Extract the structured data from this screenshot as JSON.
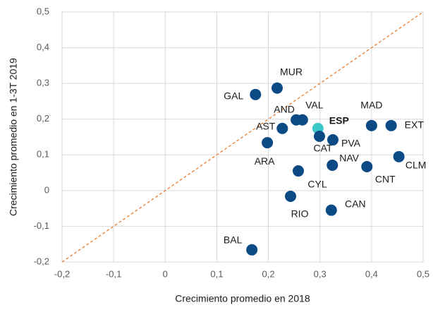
{
  "chart_data": {
    "type": "scatter",
    "x_label": "Crecimiento promedio  en 2018",
    "y_label": "Crecimiento promedio  en 1-3T 2019",
    "labels": [
      "MUR",
      "GAL",
      "AND",
      "VAL",
      "ESP",
      "AST",
      "CAT",
      "PVA",
      "MAD",
      "EXT",
      "ARA",
      "NAV",
      "CLM",
      "CNT",
      "CYL",
      "RIO",
      "CAN",
      "BAL"
    ],
    "x": [
      0.217,
      0.175,
      0.254,
      0.266,
      0.296,
      0.227,
      0.299,
      0.325,
      0.4,
      0.438,
      0.198,
      0.324,
      0.453,
      0.391,
      0.258,
      0.243,
      0.322,
      0.168
    ],
    "y": [
      0.287,
      0.269,
      0.198,
      0.198,
      0.174,
      0.174,
      0.152,
      0.142,
      0.182,
      0.182,
      0.134,
      0.071,
      0.095,
      0.067,
      0.055,
      -0.016,
      -0.055,
      -0.166
    ],
    "colors": [
      "#0b4a85",
      "#0b4a85",
      "#0b4a85",
      "#0b4a85",
      "#3ec9c9",
      "#0b4a85",
      "#0b4a85",
      "#0b4a85",
      "#0b4a85",
      "#0b4a85",
      "#0b4a85",
      "#0b4a85",
      "#0b4a85",
      "#0b4a85",
      "#0b4a85",
      "#0b4a85",
      "#0b4a85",
      "#0b4a85"
    ],
    "xlim": [
      -0.2,
      0.5
    ],
    "ylim": [
      -0.2,
      0.5
    ],
    "xticks": [
      {
        "value": -0.2,
        "label": "-0,2"
      },
      {
        "value": -0.1,
        "label": "-0,1"
      },
      0,
      {
        "value": 0.1,
        "label": "0,1"
      },
      {
        "value": 0.2,
        "label": "0,2"
      },
      {
        "value": 0.3,
        "label": "0,3"
      },
      {
        "value": 0.4,
        "label": "0,4"
      },
      {
        "value": 0.5,
        "label": "0,5"
      }
    ],
    "yticks": [
      {
        "value": -0.2,
        "label": "-0,2"
      },
      {
        "value": -0.1,
        "label": "-0,1"
      },
      0,
      {
        "value": 0.1,
        "label": "0,1"
      },
      {
        "value": 0.2,
        "label": "0,2"
      },
      {
        "value": 0.3,
        "label": "0,3"
      },
      {
        "value": 0.4,
        "label": "0,4"
      },
      {
        "value": 0.5,
        "label": "0,5"
      }
    ],
    "grid": true
  }
}
